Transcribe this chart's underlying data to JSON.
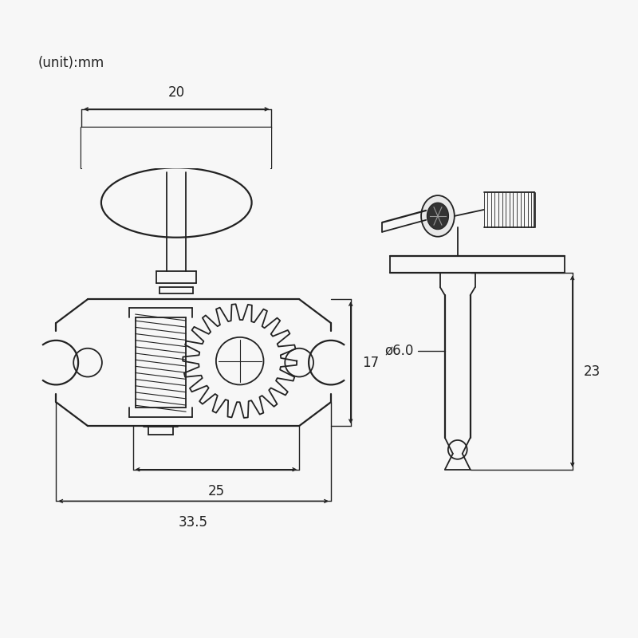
{
  "bg_color": "#f7f7f7",
  "line_color": "#222222",
  "dim_color": "#222222",
  "unit_text": "(unit):mm",
  "unit_fontsize": 12,
  "dim_fontsize": 12
}
